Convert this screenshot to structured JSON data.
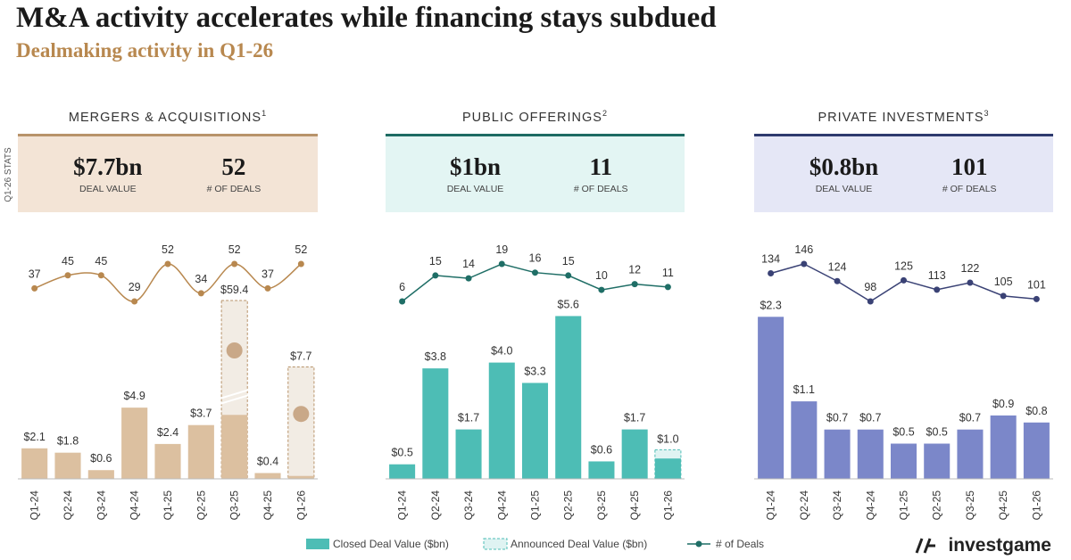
{
  "title": "M&A activity accelerates while financing stays subdued",
  "subtitle": "Dealmaking activity in Q1-26",
  "stats_label": "Q1-26 STATS",
  "brand": "investgame",
  "chart_data": [
    {
      "type": "bar",
      "title": "MERGERS & ACQUISITIONS",
      "note": "1",
      "header_color": "#b8936a",
      "stats_background": "#f3e4d6",
      "smooth": true,
      "stats": [
        {
          "value": "$7.7bn",
          "label": "DEAL VALUE"
        },
        {
          "value": 52,
          "label": "# OF DEALS"
        }
      ],
      "categories": [
        "Q1-24",
        "Q2-24",
        "Q3-24",
        "Q4-24",
        "Q1-25",
        "Q2-25",
        "Q3-25",
        "Q4-25",
        "Q1-26"
      ],
      "series": [
        {
          "name": "Closed Deal Value ($bn)",
          "color": "#dcc0a0",
          "values": [
            2.1,
            1.8,
            0.6,
            4.9,
            2.4,
            3.7,
            4.4,
            0.4,
            0.2
          ],
          "value_labels": [
            "$2.1",
            "$1.8",
            "$0.6",
            "$4.9",
            "$2.4",
            "$3.7",
            null,
            "$0.4",
            null
          ]
        },
        {
          "name": "Announced Deal Value ($bn)",
          "color": "#b8936a",
          "values": [
            null,
            null,
            null,
            null,
            null,
            null,
            59.4,
            null,
            7.7
          ],
          "value_labels": [
            null,
            null,
            null,
            null,
            null,
            null,
            "$59.4",
            null,
            "$7.7"
          ]
        },
        {
          "name": "# of Deals",
          "color": "#b8884f",
          "values": [
            37,
            45,
            45,
            29,
            52,
            34,
            52,
            37,
            52
          ]
        }
      ]
    },
    {
      "type": "bar",
      "title": "PUBLIC OFFERINGS",
      "note": "2",
      "header_color": "#1d6b63",
      "stats_background": "#e3f5f3",
      "smooth": false,
      "stats": [
        {
          "value": "$1bn",
          "label": "DEAL VALUE"
        },
        {
          "value": 11,
          "label": "# OF DEALS"
        }
      ],
      "categories": [
        "Q1-24",
        "Q2-24",
        "Q3-24",
        "Q4-24",
        "Q1-25",
        "Q2-25",
        "Q3-25",
        "Q4-25",
        "Q1-26"
      ],
      "series": [
        {
          "name": "Closed Deal Value ($bn)",
          "color": "#4dbdb5",
          "values": [
            0.5,
            3.8,
            1.7,
            4.0,
            3.3,
            5.6,
            0.6,
            1.7,
            0.7
          ],
          "value_labels": [
            "$0.5",
            "$3.8",
            "$1.7",
            "$4.0",
            "$3.3",
            "$5.6",
            "$0.6",
            "$1.7",
            null
          ]
        },
        {
          "name": "Announced Deal Value ($bn)",
          "color": "#4dbdb5",
          "values": [
            null,
            null,
            null,
            null,
            null,
            null,
            null,
            null,
            1.0
          ],
          "value_labels": [
            null,
            null,
            null,
            null,
            null,
            null,
            null,
            null,
            "$1.0"
          ]
        },
        {
          "name": "# of Deals",
          "color": "#1f6e66",
          "values": [
            6,
            15,
            14,
            19,
            16,
            15,
            10,
            12,
            11
          ]
        }
      ]
    },
    {
      "type": "bar",
      "title": "PRIVATE INVESTMENTS",
      "note": "3",
      "header_color": "#2e3a6e",
      "stats_background": "#e5e7f6",
      "smooth": false,
      "stats": [
        {
          "value": "$0.8bn",
          "label": "DEAL VALUE"
        },
        {
          "value": 101,
          "label": "# OF DEALS"
        }
      ],
      "categories": [
        "Q1-24",
        "Q2-24",
        "Q3-24",
        "Q4-24",
        "Q1-25",
        "Q2-25",
        "Q3-25",
        "Q4-25",
        "Q1-26"
      ],
      "series": [
        {
          "name": "Closed Deal Value ($bn)",
          "color": "#7b87c9",
          "values": [
            2.3,
            1.1,
            0.7,
            0.7,
            0.5,
            0.5,
            0.7,
            0.9,
            0.8
          ],
          "value_labels": [
            "$2.3",
            "$1.1",
            "$0.7",
            "$0.7",
            "$0.5",
            "$0.5",
            "$0.7",
            "$0.9",
            "$0.8"
          ]
        },
        {
          "name": "# of Deals",
          "color": "#3a4275",
          "values": [
            134,
            146,
            124,
            98,
            125,
            113,
            122,
            105,
            101
          ]
        }
      ]
    }
  ]
}
